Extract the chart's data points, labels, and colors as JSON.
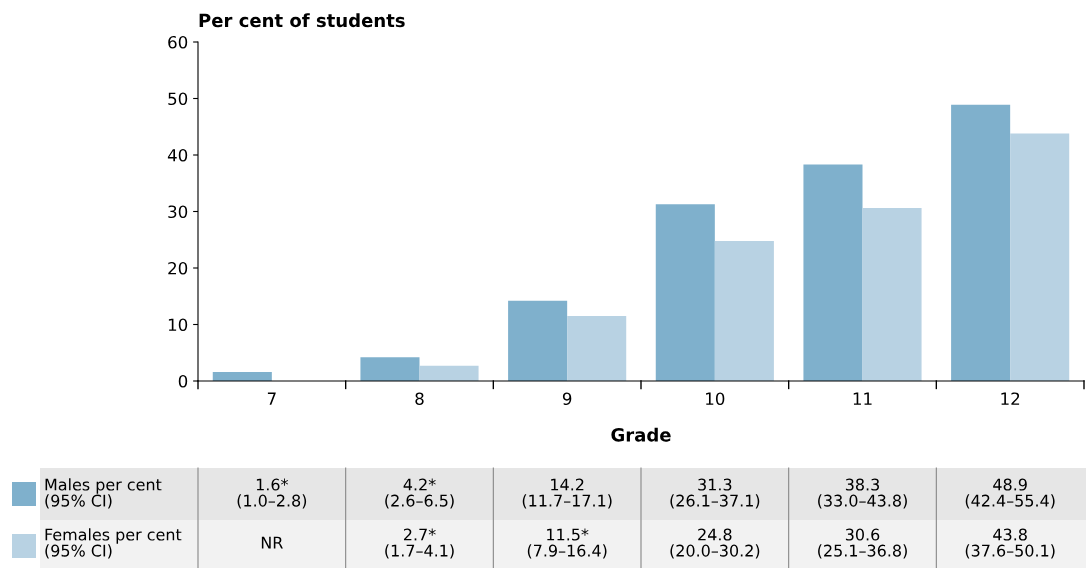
{
  "chart_data": {
    "type": "bar",
    "ylabel": "Per cent of students",
    "xlabel": "Grade",
    "categories": [
      "7",
      "8",
      "9",
      "10",
      "11",
      "12"
    ],
    "ylim": [
      0,
      60
    ],
    "yticks": [
      0,
      10,
      20,
      30,
      40,
      50,
      60
    ],
    "grid": false,
    "legend": "bottom",
    "series": [
      {
        "name": "Males per cent\n(95% CI)",
        "color": "#7fb0cc",
        "values": [
          1.6,
          4.2,
          14.2,
          31.3,
          38.3,
          48.9
        ],
        "value_labels": [
          "1.6*\n(1.0–2.8)",
          "4.2*\n(2.6–6.5)",
          "14.2\n(11.7–17.1)",
          "31.3\n(26.1–37.1)",
          "38.3\n(33.0–43.8)",
          "48.9\n(42.4–55.4)"
        ]
      },
      {
        "name": "Females per cent\n(95% CI)",
        "color": "#b8d2e3",
        "values": [
          null,
          2.7,
          11.5,
          24.8,
          30.6,
          43.8
        ],
        "value_labels": [
          "NR",
          "2.7*\n(1.7–4.1)",
          "11.5*\n(7.9–16.4)",
          "24.8\n(20.0–30.2)",
          "30.6\n(25.1–36.8)",
          "43.8\n(37.6–50.1)"
        ]
      }
    ]
  }
}
